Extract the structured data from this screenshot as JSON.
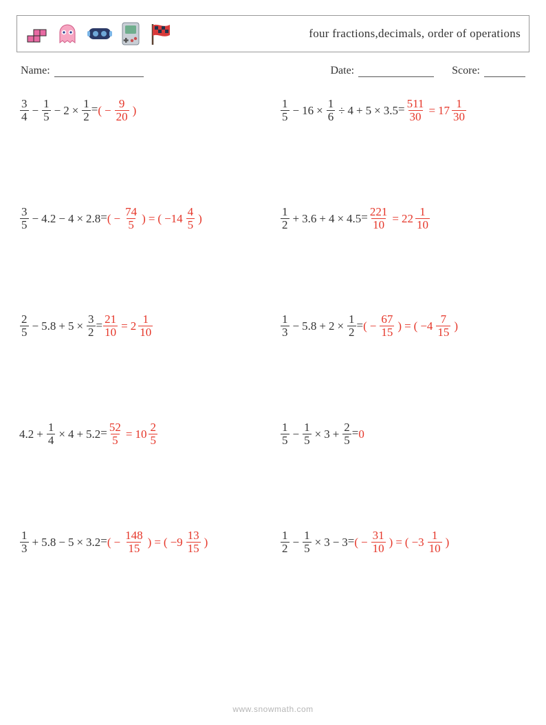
{
  "header": {
    "title": "four fractions,decimals, order of operations",
    "icons": [
      "tetris-icon",
      "ghost-icon",
      "vr-headset-icon",
      "gameboy-icon",
      "race-flag-icon"
    ],
    "icon_colors": {
      "tetris": "#e76aa3",
      "ghost_body": "#f6a6c2",
      "ghost_eye": "#2a3d8f",
      "vr_body": "#2b3a67",
      "vr_strap": "#7bb6e8",
      "gameboy_body": "#c9cfd6",
      "gameboy_screen": "#6fae8d",
      "gameboy_button": "#c94f4f",
      "flag_pole": "#5a4030",
      "flag_red": "#d83a3a",
      "flag_dark": "#24324a"
    }
  },
  "meta": {
    "name_label": "Name:",
    "date_label": "Date:",
    "score_label": "Score:"
  },
  "colors": {
    "text": "#333333",
    "answer": "#e53528",
    "border": "#999999",
    "watermark": "rgba(120,120,120,0.55)"
  },
  "footer": {
    "text": "www.snowmath.com"
  },
  "ops": {
    "minus": "−",
    "plus": "+",
    "times": "×",
    "div": "÷",
    "eq": "="
  },
  "problems": [
    {
      "lhs": [
        {
          "type": "frac",
          "n": "3",
          "d": "4"
        },
        {
          "type": "op",
          "v": "minus"
        },
        {
          "type": "frac",
          "n": "1",
          "d": "5"
        },
        {
          "type": "op",
          "v": "minus"
        },
        {
          "type": "num",
          "v": "2"
        },
        {
          "type": "op",
          "v": "times"
        },
        {
          "type": "frac",
          "n": "1",
          "d": "2"
        }
      ],
      "rhs": [
        {
          "type": "group",
          "open": "(",
          "close": ")",
          "inner": [
            {
              "type": "neg"
            },
            {
              "type": "frac",
              "n": "9",
              "d": "20"
            }
          ]
        }
      ]
    },
    {
      "lhs": [
        {
          "type": "frac",
          "n": "1",
          "d": "5"
        },
        {
          "type": "op",
          "v": "minus"
        },
        {
          "type": "num",
          "v": "16"
        },
        {
          "type": "op",
          "v": "times"
        },
        {
          "type": "frac",
          "n": "1",
          "d": "6"
        },
        {
          "type": "op",
          "v": "div"
        },
        {
          "type": "num",
          "v": "4"
        },
        {
          "type": "op",
          "v": "plus"
        },
        {
          "type": "num",
          "v": "5"
        },
        {
          "type": "op",
          "v": "times"
        },
        {
          "type": "num",
          "v": "3.5"
        }
      ],
      "rhs": [
        {
          "type": "frac",
          "n": "511",
          "d": "30"
        },
        {
          "type": "op",
          "v": "eq"
        },
        {
          "type": "mixed",
          "w": "17",
          "n": "1",
          "d": "30"
        }
      ]
    },
    {
      "lhs": [
        {
          "type": "frac",
          "n": "3",
          "d": "5"
        },
        {
          "type": "op",
          "v": "minus"
        },
        {
          "type": "num",
          "v": "4.2"
        },
        {
          "type": "op",
          "v": "minus"
        },
        {
          "type": "num",
          "v": "4"
        },
        {
          "type": "op",
          "v": "times"
        },
        {
          "type": "num",
          "v": "2.8"
        }
      ],
      "rhs": [
        {
          "type": "group",
          "open": "(",
          "close": ")",
          "inner": [
            {
              "type": "neg"
            },
            {
              "type": "frac",
              "n": "74",
              "d": "5"
            }
          ]
        },
        {
          "type": "op",
          "v": "eq"
        },
        {
          "type": "group",
          "open": "(",
          "close": ")",
          "inner": [
            {
              "type": "num",
              "v": "−14"
            },
            {
              "type": "frac",
              "n": "4",
              "d": "5"
            }
          ]
        }
      ]
    },
    {
      "lhs": [
        {
          "type": "frac",
          "n": "1",
          "d": "2"
        },
        {
          "type": "op",
          "v": "plus"
        },
        {
          "type": "num",
          "v": "3.6"
        },
        {
          "type": "op",
          "v": "plus"
        },
        {
          "type": "num",
          "v": "4"
        },
        {
          "type": "op",
          "v": "times"
        },
        {
          "type": "num",
          "v": "4.5"
        }
      ],
      "rhs": [
        {
          "type": "frac",
          "n": "221",
          "d": "10"
        },
        {
          "type": "op",
          "v": "eq"
        },
        {
          "type": "mixed",
          "w": "22",
          "n": "1",
          "d": "10"
        }
      ]
    },
    {
      "lhs": [
        {
          "type": "frac",
          "n": "2",
          "d": "5"
        },
        {
          "type": "op",
          "v": "minus"
        },
        {
          "type": "num",
          "v": "5.8"
        },
        {
          "type": "op",
          "v": "plus"
        },
        {
          "type": "num",
          "v": "5"
        },
        {
          "type": "op",
          "v": "times"
        },
        {
          "type": "frac",
          "n": "3",
          "d": "2"
        }
      ],
      "rhs": [
        {
          "type": "frac",
          "n": "21",
          "d": "10"
        },
        {
          "type": "op",
          "v": "eq"
        },
        {
          "type": "mixed",
          "w": "2",
          "n": "1",
          "d": "10"
        }
      ]
    },
    {
      "lhs": [
        {
          "type": "frac",
          "n": "1",
          "d": "3"
        },
        {
          "type": "op",
          "v": "minus"
        },
        {
          "type": "num",
          "v": "5.8"
        },
        {
          "type": "op",
          "v": "plus"
        },
        {
          "type": "num",
          "v": "2"
        },
        {
          "type": "op",
          "v": "times"
        },
        {
          "type": "frac",
          "n": "1",
          "d": "2"
        }
      ],
      "rhs": [
        {
          "type": "group",
          "open": "(",
          "close": ")",
          "inner": [
            {
              "type": "neg"
            },
            {
              "type": "frac",
              "n": "67",
              "d": "15"
            }
          ]
        },
        {
          "type": "op",
          "v": "eq"
        },
        {
          "type": "group",
          "open": "(",
          "close": ")",
          "inner": [
            {
              "type": "num",
              "v": "−4"
            },
            {
              "type": "frac",
              "n": "7",
              "d": "15"
            }
          ]
        }
      ]
    },
    {
      "lhs": [
        {
          "type": "num",
          "v": "4.2"
        },
        {
          "type": "op",
          "v": "plus"
        },
        {
          "type": "frac",
          "n": "1",
          "d": "4"
        },
        {
          "type": "op",
          "v": "times"
        },
        {
          "type": "num",
          "v": "4"
        },
        {
          "type": "op",
          "v": "plus"
        },
        {
          "type": "num",
          "v": "5.2"
        }
      ],
      "rhs": [
        {
          "type": "frac",
          "n": "52",
          "d": "5"
        },
        {
          "type": "op",
          "v": "eq"
        },
        {
          "type": "mixed",
          "w": "10",
          "n": "2",
          "d": "5"
        }
      ]
    },
    {
      "lhs": [
        {
          "type": "frac",
          "n": "1",
          "d": "5"
        },
        {
          "type": "op",
          "v": "minus"
        },
        {
          "type": "frac",
          "n": "1",
          "d": "5"
        },
        {
          "type": "op",
          "v": "times"
        },
        {
          "type": "num",
          "v": "3"
        },
        {
          "type": "op",
          "v": "plus"
        },
        {
          "type": "frac",
          "n": "2",
          "d": "5"
        }
      ],
      "rhs": [
        {
          "type": "num",
          "v": "0"
        }
      ]
    },
    {
      "lhs": [
        {
          "type": "frac",
          "n": "1",
          "d": "3"
        },
        {
          "type": "op",
          "v": "plus"
        },
        {
          "type": "num",
          "v": "5.8"
        },
        {
          "type": "op",
          "v": "minus"
        },
        {
          "type": "num",
          "v": "5"
        },
        {
          "type": "op",
          "v": "times"
        },
        {
          "type": "num",
          "v": "3.2"
        }
      ],
      "rhs": [
        {
          "type": "group",
          "open": "(",
          "close": ")",
          "inner": [
            {
              "type": "neg"
            },
            {
              "type": "frac",
              "n": "148",
              "d": "15"
            }
          ]
        },
        {
          "type": "op",
          "v": "eq"
        },
        {
          "type": "group",
          "open": "(",
          "close": ")",
          "inner": [
            {
              "type": "num",
              "v": "−9"
            },
            {
              "type": "frac",
              "n": "13",
              "d": "15"
            }
          ]
        }
      ]
    },
    {
      "lhs": [
        {
          "type": "frac",
          "n": "1",
          "d": "2"
        },
        {
          "type": "op",
          "v": "minus"
        },
        {
          "type": "frac",
          "n": "1",
          "d": "5"
        },
        {
          "type": "op",
          "v": "times"
        },
        {
          "type": "num",
          "v": "3"
        },
        {
          "type": "op",
          "v": "minus"
        },
        {
          "type": "num",
          "v": "3"
        }
      ],
      "rhs": [
        {
          "type": "group",
          "open": "(",
          "close": ")",
          "inner": [
            {
              "type": "neg"
            },
            {
              "type": "frac",
              "n": "31",
              "d": "10"
            }
          ]
        },
        {
          "type": "op",
          "v": "eq"
        },
        {
          "type": "group",
          "open": "(",
          "close": ")",
          "inner": [
            {
              "type": "num",
              "v": "−3"
            },
            {
              "type": "frac",
              "n": "1",
              "d": "10"
            }
          ]
        }
      ]
    }
  ]
}
